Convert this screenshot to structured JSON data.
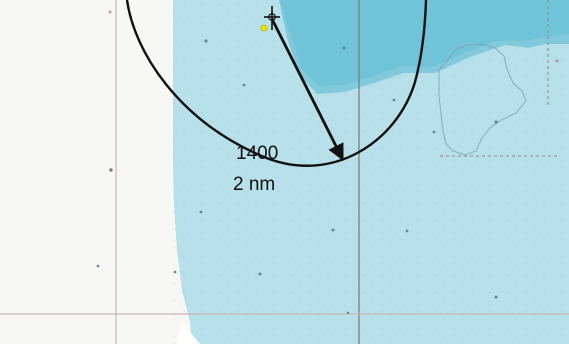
{
  "chart": {
    "label_time": "1400",
    "label_range": "2 nm"
  },
  "colors": {
    "land": "#f7f7f5",
    "shallow_water": "#b8e0ea",
    "deep_water": "#7ec8da",
    "line": "#111111",
    "grid_line": "#c7b7b7",
    "dashed_line": "#8b8b8b",
    "vessel_marker": "#f1e400"
  },
  "icons": {
    "position_marker": "crosshair-icon",
    "heading_arrow": "arrow-icon"
  }
}
